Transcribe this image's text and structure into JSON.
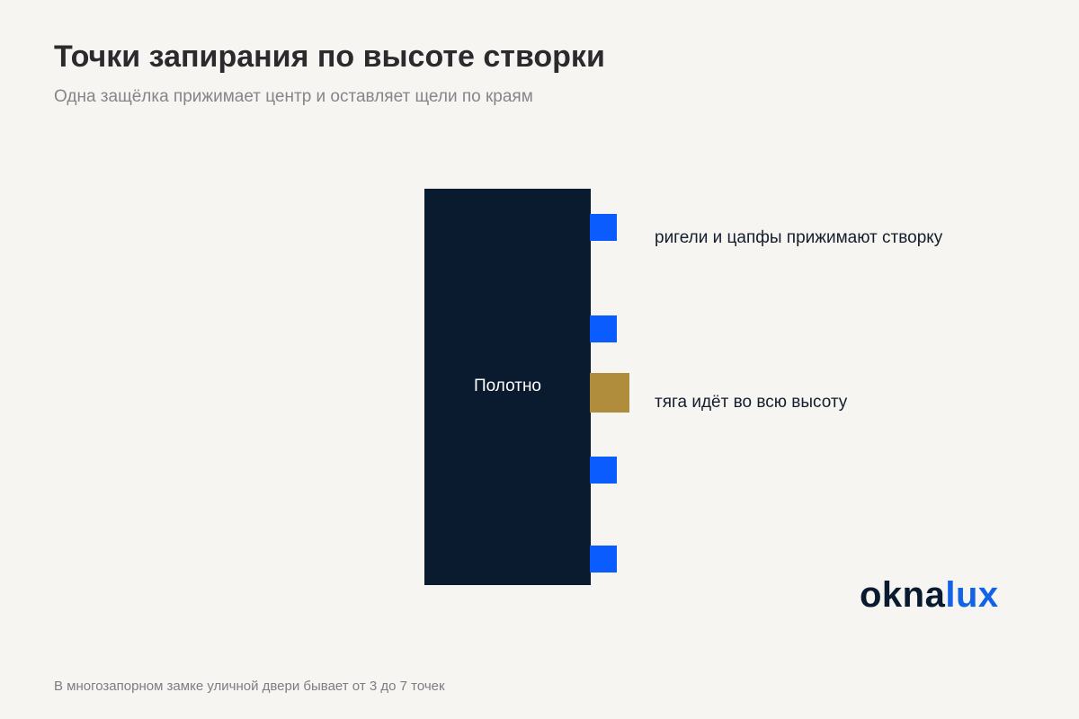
{
  "header": {
    "title": "Точки запирания по высоте створки",
    "subtitle": "Одна защёлка прижимает центр и оставляет щели по краям"
  },
  "diagram": {
    "sash_label": "Полотно",
    "callouts": {
      "locking_points": "ригели и цапфы прижимают створку",
      "rod": "тяга идёт во всю высоту"
    },
    "locking_point_count": 4
  },
  "logo": {
    "part1": "okna",
    "part2": "lux"
  },
  "footnote": "В многозапорном замке уличной двери бывает от 3 до 7 точек",
  "colors": {
    "background": "#f6f5f2",
    "sash": "#0a1a2f",
    "locking_point": "#0a5cff",
    "rod": "#b08d3c",
    "logo_dark": "#0a1a2f",
    "logo_accent": "#1263e6"
  }
}
